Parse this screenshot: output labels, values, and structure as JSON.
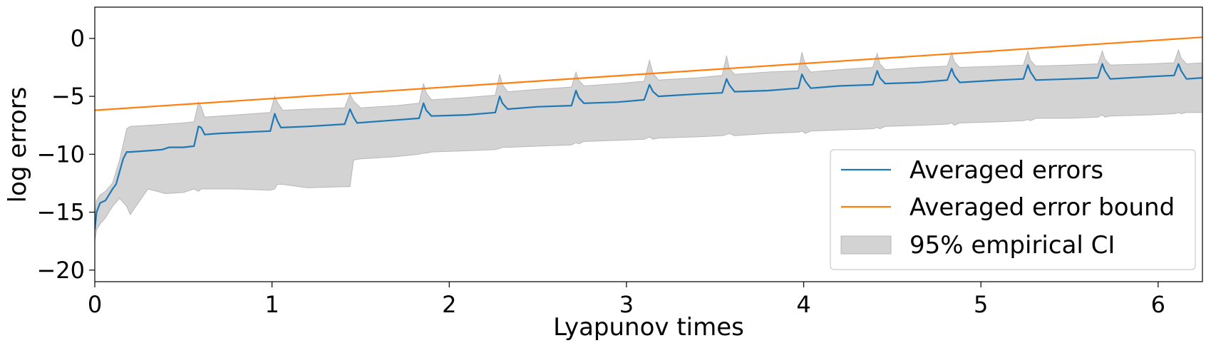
{
  "chart_data": {
    "type": "line",
    "xlabel": "Lyapunov times",
    "ylabel": "log errors",
    "xlim": [
      0,
      6.25
    ],
    "ylim": [
      -21,
      2.7
    ],
    "xticks": [
      0,
      1,
      2,
      3,
      4,
      5,
      6
    ],
    "xtick_labels": [
      "0",
      "1",
      "2",
      "3",
      "4",
      "5",
      "6"
    ],
    "yticks": [
      0,
      -5,
      -10,
      -15,
      -20
    ],
    "ytick_labels": [
      "0",
      "−5",
      "−10",
      "−15",
      "−20"
    ],
    "grid": false,
    "legend_position": "lower-right",
    "colors": {
      "averaged_errors": "#1f77b4",
      "averaged_error_bound": "#ff7f0e",
      "ci_fill": "#d3d3d3",
      "ci_edge": "#b8b8b8"
    },
    "series": [
      {
        "name": "Averaged errors",
        "kind": "line",
        "x": [
          0,
          0.01,
          0.03,
          0.06,
          0.08,
          0.1,
          0.12,
          0.14,
          0.16,
          0.18,
          0.2,
          0.3,
          0.38,
          0.42,
          0.5,
          0.56,
          0.585,
          0.6,
          0.62,
          0.7,
          0.85,
          0.99,
          1.015,
          1.03,
          1.05,
          1.2,
          1.41,
          1.44,
          1.46,
          1.48,
          1.65,
          1.83,
          1.855,
          1.87,
          1.9,
          2.1,
          2.26,
          2.285,
          2.3,
          2.33,
          2.5,
          2.69,
          2.715,
          2.73,
          2.76,
          2.95,
          3.1,
          3.13,
          3.15,
          3.18,
          3.4,
          3.54,
          3.565,
          3.58,
          3.61,
          3.8,
          3.97,
          3.99,
          4.01,
          4.04,
          4.2,
          4.39,
          4.415,
          4.43,
          4.46,
          4.65,
          4.81,
          4.835,
          4.85,
          4.88,
          5.1,
          5.24,
          5.265,
          5.28,
          5.31,
          5.5,
          5.66,
          5.685,
          5.7,
          5.73,
          5.95,
          6.09,
          6.115,
          6.13,
          6.16,
          6.25
        ],
        "y": [
          -16.5,
          -15.0,
          -14.2,
          -14.0,
          -13.5,
          -13.0,
          -12.6,
          -11.5,
          -10.4,
          -9.8,
          -9.8,
          -9.7,
          -9.6,
          -9.4,
          -9.4,
          -9.3,
          -7.6,
          -7.7,
          -8.3,
          -8.2,
          -8.1,
          -8.0,
          -6.5,
          -7.1,
          -7.7,
          -7.6,
          -7.4,
          -6.1,
          -6.8,
          -7.3,
          -7.1,
          -6.9,
          -5.6,
          -6.2,
          -6.7,
          -6.6,
          -6.4,
          -5.0,
          -5.6,
          -6.1,
          -5.9,
          -5.8,
          -4.5,
          -5.1,
          -5.6,
          -5.5,
          -5.3,
          -4.0,
          -4.6,
          -5.0,
          -4.8,
          -4.7,
          -3.5,
          -4.0,
          -4.6,
          -4.5,
          -4.3,
          -3.1,
          -3.7,
          -4.3,
          -4.1,
          -4.0,
          -2.8,
          -3.4,
          -3.9,
          -3.8,
          -3.6,
          -2.6,
          -3.2,
          -3.8,
          -3.6,
          -3.5,
          -2.3,
          -2.9,
          -3.6,
          -3.5,
          -3.4,
          -2.2,
          -2.8,
          -3.5,
          -3.3,
          -3.2,
          -2.2,
          -2.8,
          -3.5,
          -3.4
        ]
      },
      {
        "name": "Averaged error bound",
        "kind": "line",
        "x": [
          0,
          6.25
        ],
        "y": [
          -6.2,
          0.1
        ]
      },
      {
        "name": "95% empirical CI",
        "kind": "band",
        "x": [
          0,
          0.01,
          0.03,
          0.06,
          0.1,
          0.14,
          0.18,
          0.2,
          0.3,
          0.4,
          0.5,
          0.56,
          0.585,
          0.6,
          0.62,
          0.8,
          0.99,
          1.015,
          1.03,
          1.06,
          1.2,
          1.41,
          1.44,
          1.46,
          1.5,
          1.7,
          1.83,
          1.855,
          1.87,
          1.9,
          2.1,
          2.26,
          2.285,
          2.3,
          2.33,
          2.5,
          2.69,
          2.715,
          2.73,
          2.76,
          2.95,
          3.1,
          3.13,
          3.15,
          3.18,
          3.4,
          3.54,
          3.565,
          3.58,
          3.61,
          3.8,
          3.97,
          3.99,
          4.01,
          4.04,
          4.2,
          4.39,
          4.415,
          4.43,
          4.46,
          4.65,
          4.81,
          4.835,
          4.85,
          4.88,
          5.1,
          5.24,
          5.265,
          5.28,
          5.31,
          5.5,
          5.66,
          5.685,
          5.7,
          5.73,
          5.95,
          6.09,
          6.115,
          6.13,
          6.16,
          6.25
        ],
        "upper": [
          -15.5,
          -14.0,
          -13.5,
          -13.2,
          -12.5,
          -10.5,
          -7.8,
          -7.6,
          -7.5,
          -7.4,
          -7.3,
          -7.2,
          -5.5,
          -5.9,
          -6.8,
          -6.6,
          -6.4,
          -5.0,
          -5.5,
          -6.2,
          -6.1,
          -6.0,
          -4.8,
          -5.4,
          -6.0,
          -5.8,
          -5.6,
          -3.9,
          -4.7,
          -5.3,
          -5.1,
          -4.9,
          -3.1,
          -4.0,
          -4.6,
          -4.4,
          -4.2,
          -2.9,
          -3.6,
          -4.1,
          -3.9,
          -3.7,
          -1.9,
          -3.0,
          -3.6,
          -3.4,
          -3.2,
          -1.5,
          -2.6,
          -3.1,
          -2.9,
          -2.8,
          -1.2,
          -2.3,
          -2.9,
          -2.7,
          -2.5,
          -1.3,
          -2.2,
          -2.7,
          -2.5,
          -2.4,
          -1.2,
          -2.0,
          -2.5,
          -2.4,
          -2.3,
          -1.1,
          -1.9,
          -2.4,
          -2.3,
          -2.2,
          -1.1,
          -1.8,
          -2.3,
          -2.2,
          -2.1,
          -1.0,
          -1.7,
          -2.2,
          -2.1
        ],
        "lower": [
          -17.5,
          -16.5,
          -16.0,
          -15.5,
          -14.5,
          -13.8,
          -14.5,
          -15.2,
          -13.0,
          -13.4,
          -13.3,
          -13.0,
          -13.2,
          -13.0,
          -13.0,
          -13.0,
          -13.1,
          -13.0,
          -12.6,
          -12.6,
          -12.9,
          -12.8,
          -12.8,
          -10.5,
          -10.4,
          -10.2,
          -10.0,
          -9.9,
          -9.9,
          -9.8,
          -9.7,
          -9.6,
          -9.5,
          -9.4,
          -9.4,
          -9.3,
          -9.2,
          -9.0,
          -9.1,
          -8.9,
          -8.8,
          -8.7,
          -8.5,
          -8.7,
          -8.6,
          -8.5,
          -8.4,
          -8.3,
          -8.2,
          -8.4,
          -8.2,
          -8.1,
          -8.0,
          -8.2,
          -8.0,
          -7.9,
          -7.8,
          -7.7,
          -7.8,
          -7.6,
          -7.5,
          -7.4,
          -7.3,
          -7.5,
          -7.3,
          -7.2,
          -7.1,
          -7.0,
          -7.1,
          -6.9,
          -6.9,
          -6.8,
          -6.6,
          -6.8,
          -6.7,
          -6.6,
          -6.5,
          -6.4,
          -6.5,
          -6.4,
          -6.4
        ]
      }
    ],
    "legend": [
      {
        "label": "Averaged errors",
        "swatch": "line",
        "color_key": "averaged_errors"
      },
      {
        "label": "Averaged error bound",
        "swatch": "line",
        "color_key": "averaged_error_bound"
      },
      {
        "label": "95% empirical CI",
        "swatch": "patch",
        "color_key": "ci_fill"
      }
    ]
  }
}
